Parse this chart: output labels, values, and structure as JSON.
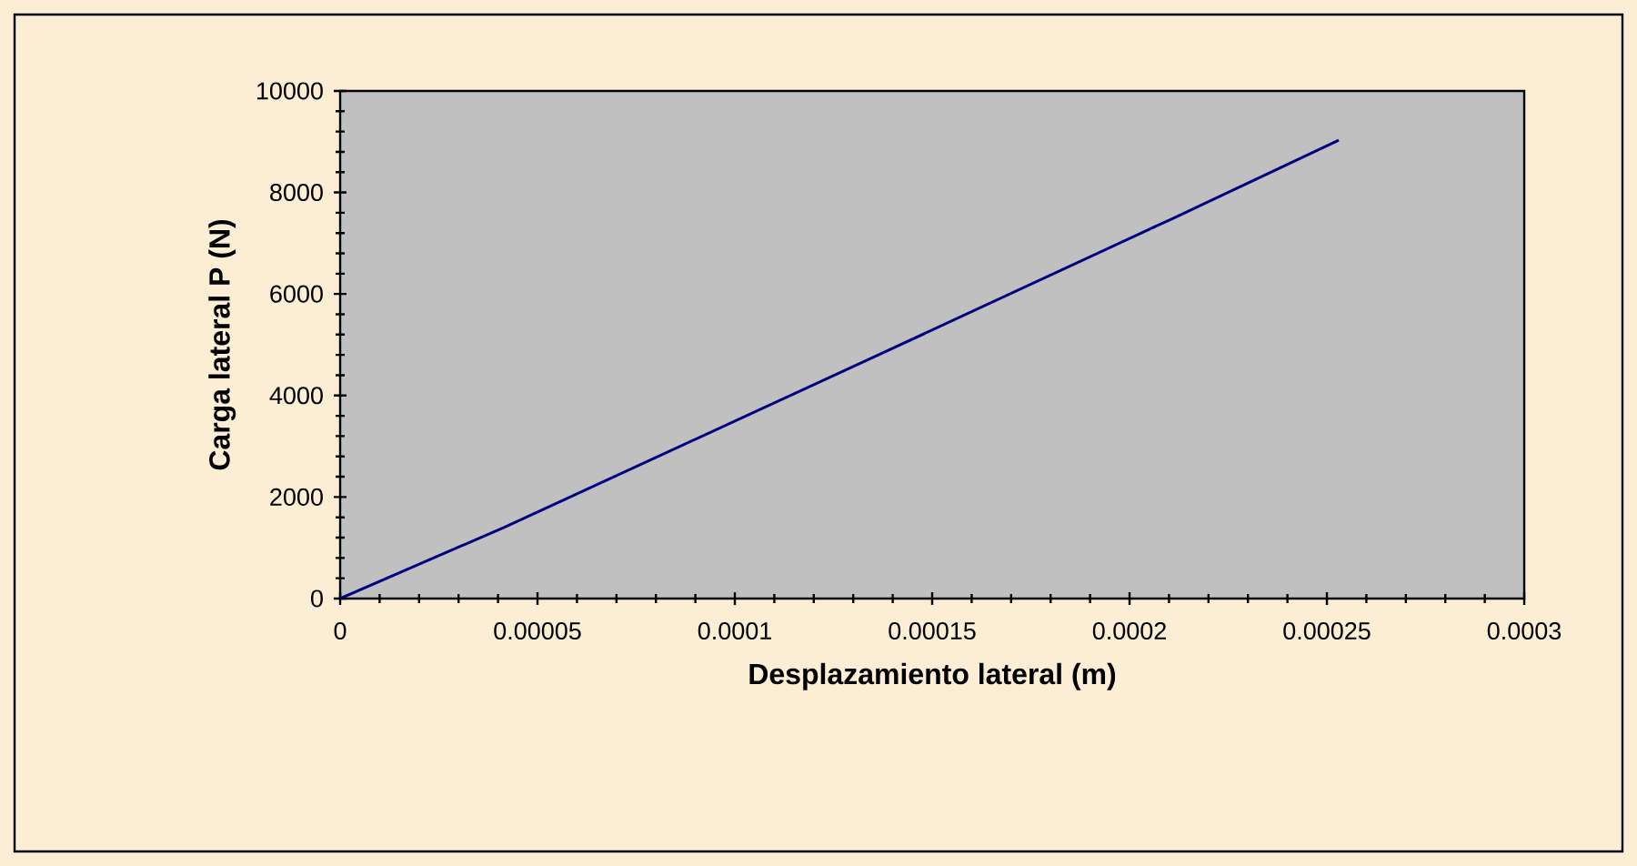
{
  "chart_data": {
    "type": "line",
    "xlabel": "Desplazamiento lateral (m)",
    "ylabel": "Carga lateral P (N)",
    "xlim": [
      0,
      0.0003
    ],
    "ylim": [
      0,
      10000
    ],
    "xticks": [
      {
        "value": 0,
        "label": "0"
      },
      {
        "value": 5e-05,
        "label": "0.00005"
      },
      {
        "value": 0.0001,
        "label": "0.0001"
      },
      {
        "value": 0.00015,
        "label": "0.00015"
      },
      {
        "value": 0.0002,
        "label": "0.0002"
      },
      {
        "value": 0.00025,
        "label": "0.00025"
      },
      {
        "value": 0.0003,
        "label": "0.0003"
      }
    ],
    "yticks": [
      0,
      2000,
      4000,
      6000,
      8000,
      10000
    ],
    "series": [
      {
        "color": "#000080",
        "x": [
          0,
          4.15e-05,
          0.000135,
          0.000211,
          0.000253
        ],
        "values": [
          0,
          1400,
          4750,
          7490,
          9030
        ]
      }
    ]
  }
}
